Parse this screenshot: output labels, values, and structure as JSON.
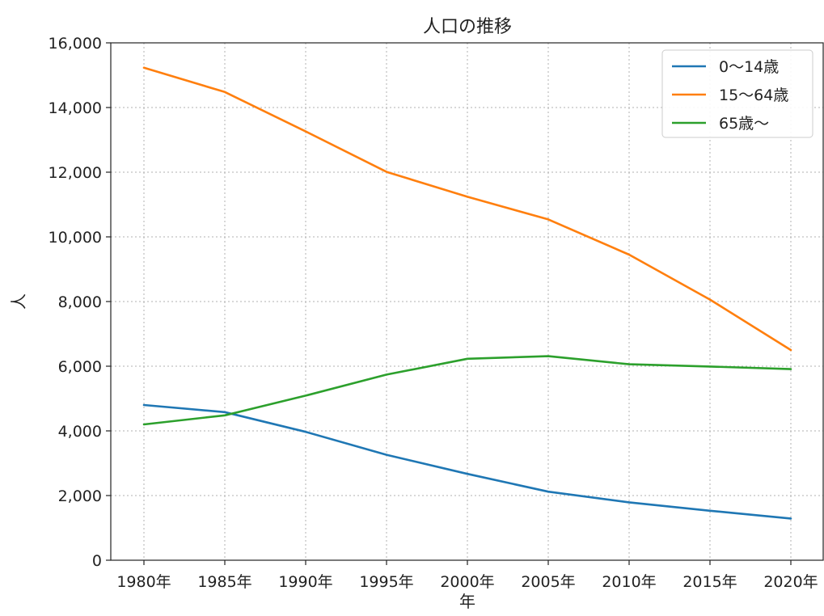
{
  "chart_data": {
    "type": "line",
    "title": "人口の推移",
    "xlabel": "年",
    "ylabel": "人",
    "categories": [
      "1980年",
      "1985年",
      "1990年",
      "1995年",
      "2000年",
      "2005年",
      "2010年",
      "2015年",
      "2020年"
    ],
    "ylim": [
      0,
      16000
    ],
    "yticks": [
      0,
      2000,
      4000,
      6000,
      8000,
      10000,
      12000,
      14000,
      16000
    ],
    "ytick_labels": [
      "0",
      "2,000",
      "4,000",
      "6,000",
      "8,000",
      "10,000",
      "12,000",
      "14,000",
      "16,000"
    ],
    "grid": true,
    "legend_position": "top-right",
    "series": [
      {
        "name": "0〜14歳",
        "color": "#1f77b4",
        "values": [
          4800,
          4580,
          3970,
          3260,
          2670,
          2120,
          1790,
          1530,
          1290
        ]
      },
      {
        "name": "15〜64歳",
        "color": "#ff7f0e",
        "values": [
          15230,
          14480,
          13260,
          12010,
          11240,
          10540,
          9450,
          8060,
          6500
        ]
      },
      {
        "name": "65歳〜",
        "color": "#2ca02c",
        "values": [
          4200,
          4480,
          5090,
          5740,
          6230,
          6310,
          6060,
          5990,
          5910
        ]
      }
    ]
  }
}
